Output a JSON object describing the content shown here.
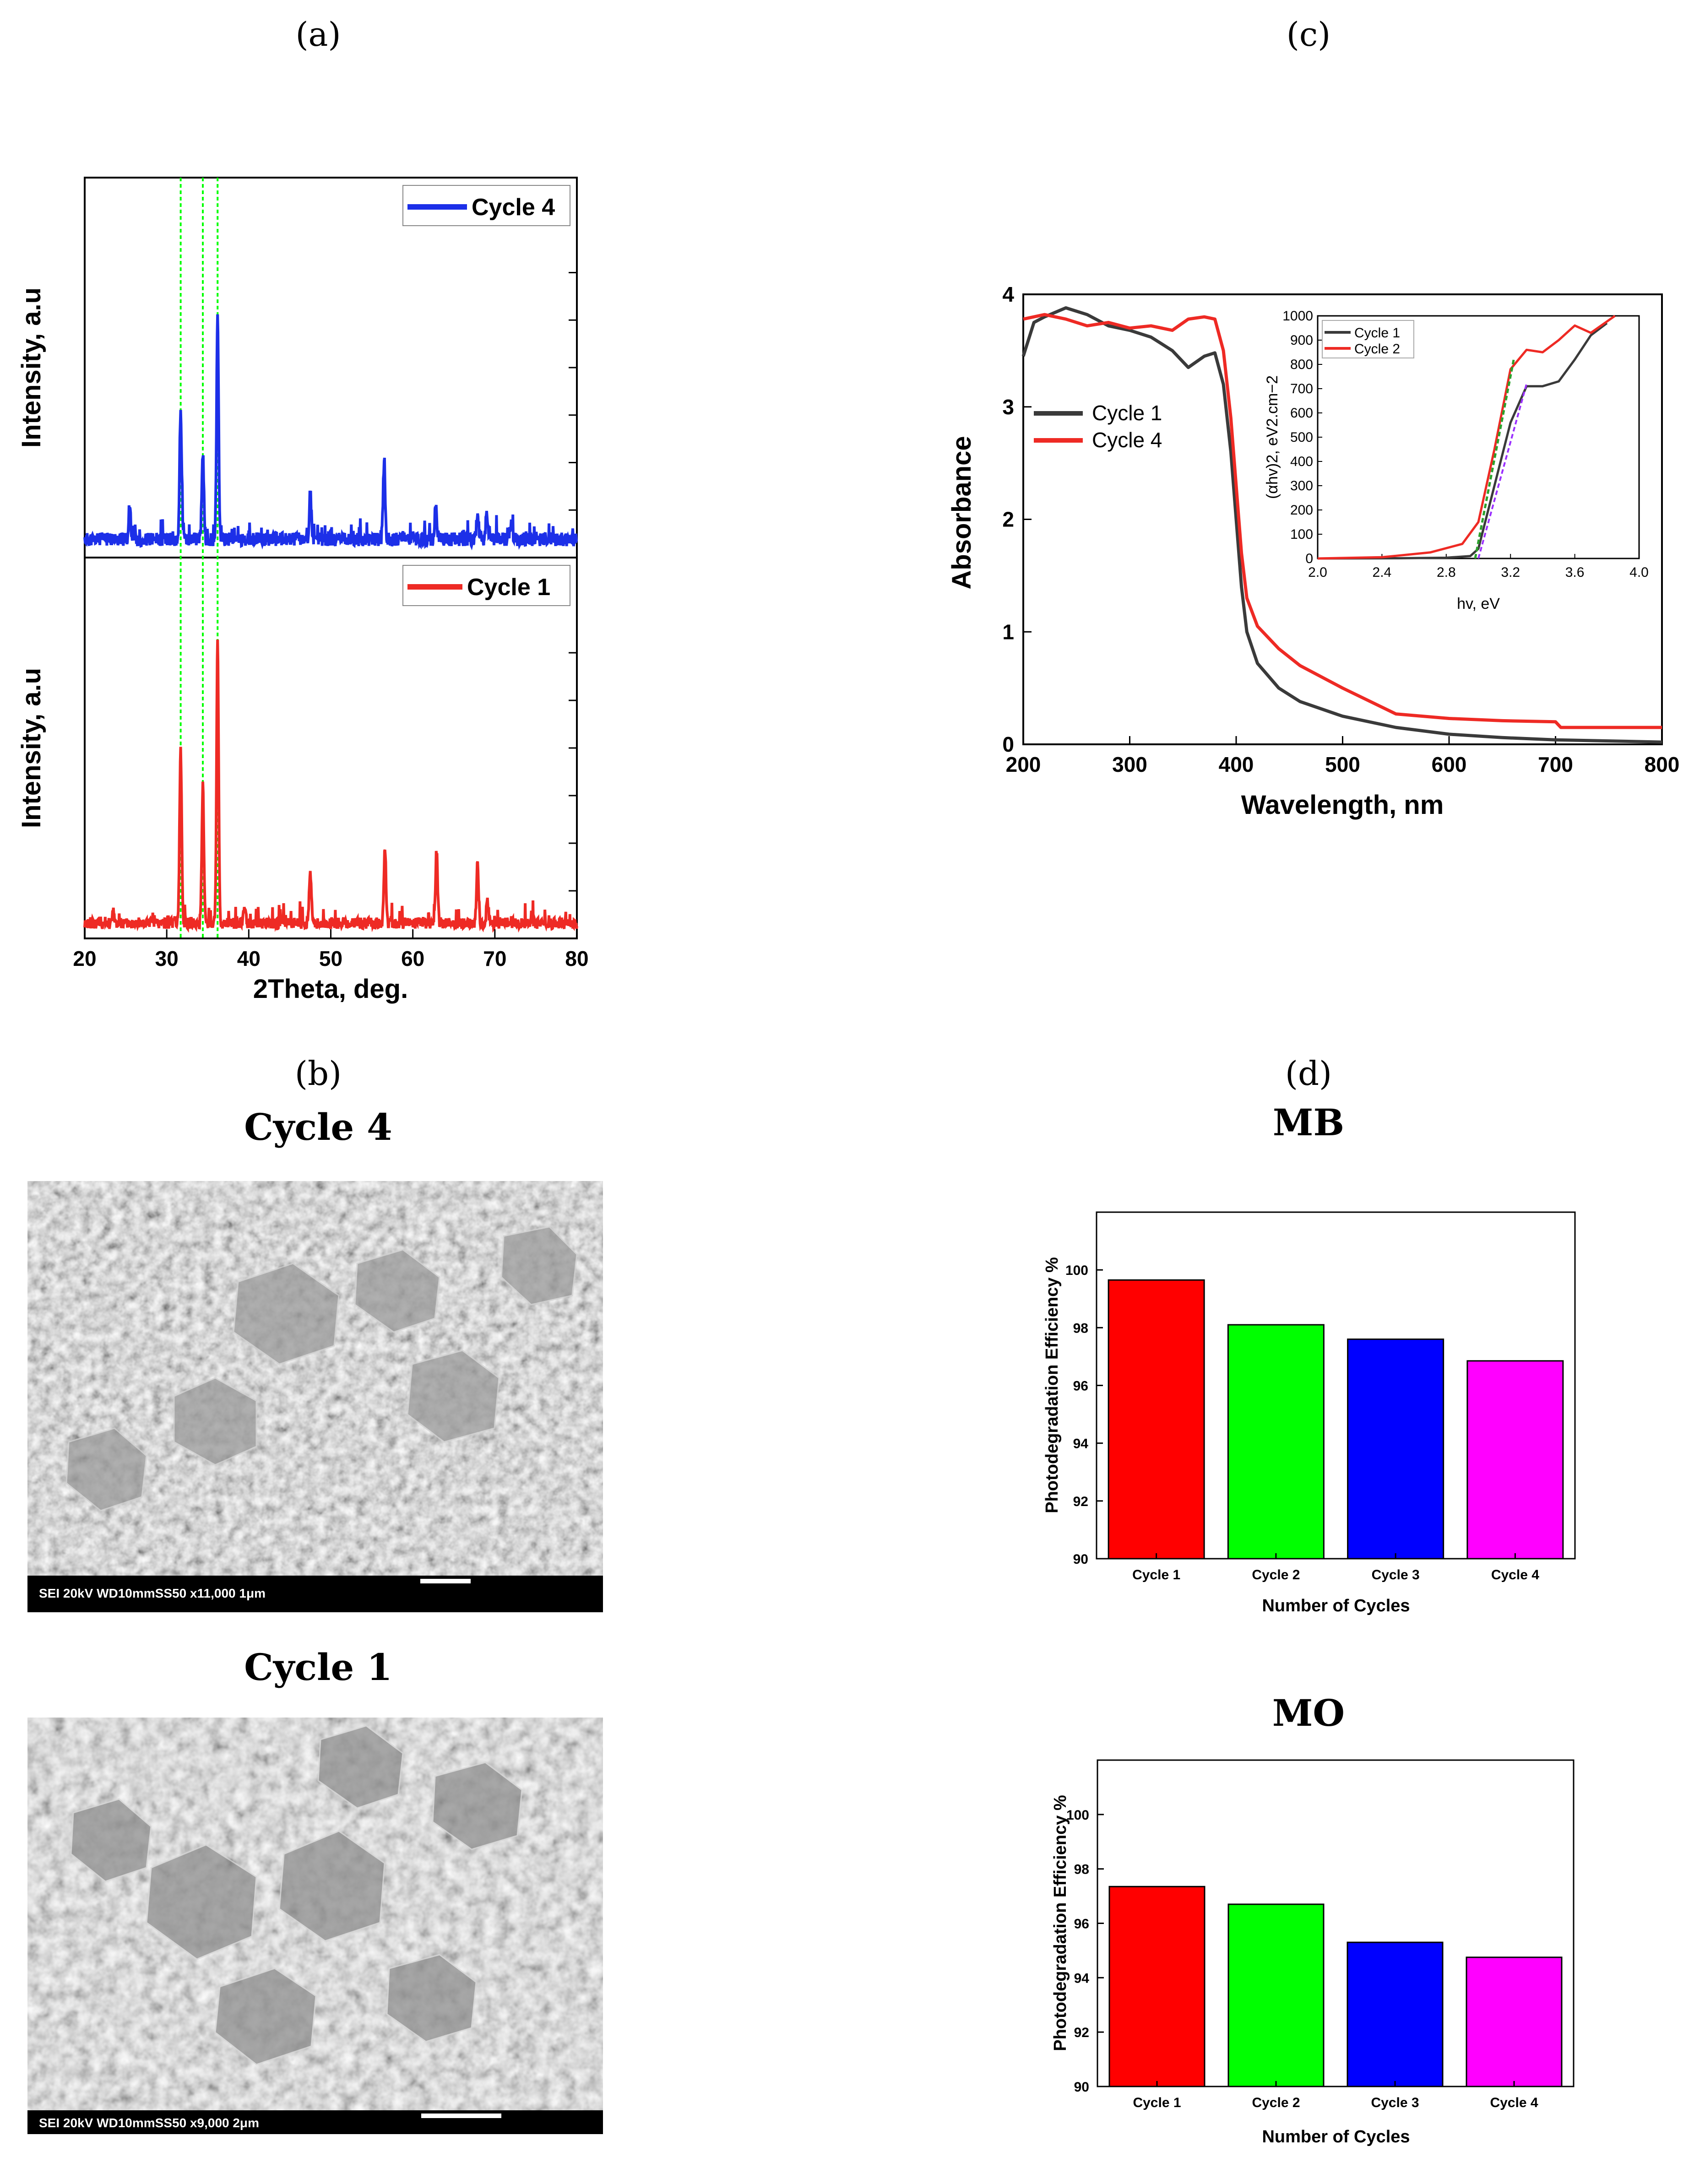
{
  "panels": {
    "a": "(a)",
    "b": "(b)",
    "c": "(c)",
    "d": "(d)"
  },
  "colors": {
    "red": "#ee2a24",
    "blue": "#1c2fe8",
    "dark": "#3a3a3a",
    "green": "#00ff00",
    "bar_blue": "#0000ff",
    "magenta": "#ff00ff"
  },
  "chart_data": [
    {
      "id": "xrd",
      "type": "line",
      "title": "",
      "xlabel": "2Theta, deg.",
      "ylabel": "Intensity, a.u",
      "xlim": [
        20,
        80
      ],
      "xticks": [
        20,
        30,
        40,
        50,
        60,
        70,
        80
      ],
      "reference_lines_x": [
        31.7,
        34.4,
        36.2
      ],
      "series": [
        {
          "name": "Cycle 4",
          "color": "#1c2fe8",
          "baseline": 0.06,
          "peaks": [
            [
              25.5,
              0.08
            ],
            [
              31.7,
              0.34
            ],
            [
              34.4,
              0.22
            ],
            [
              36.2,
              0.58
            ],
            [
              47.5,
              0.12
            ],
            [
              56.5,
              0.2
            ],
            [
              62.8,
              0.09
            ],
            [
              67.9,
              0.07
            ],
            [
              69.0,
              0.06
            ],
            [
              72.0,
              0.05
            ]
          ]
        },
        {
          "name": "Cycle 1",
          "color": "#ee2a24",
          "baseline": 0.05,
          "peaks": [
            [
              23.5,
              0.03
            ],
            [
              31.7,
              0.45
            ],
            [
              34.4,
              0.36
            ],
            [
              36.2,
              0.73
            ],
            [
              39.5,
              0.04
            ],
            [
              47.5,
              0.14
            ],
            [
              56.6,
              0.2
            ],
            [
              62.9,
              0.19
            ],
            [
              67.9,
              0.15
            ],
            [
              69.1,
              0.06
            ]
          ]
        }
      ]
    },
    {
      "id": "uvvis",
      "type": "line",
      "xlabel": "Wavelength, nm",
      "ylabel": "Absorbance",
      "xlim": [
        200,
        800
      ],
      "ylim": [
        0,
        4
      ],
      "xticks": [
        200,
        300,
        400,
        500,
        600,
        700,
        800
      ],
      "yticks": [
        0,
        1,
        2,
        3,
        4
      ],
      "series": [
        {
          "name": "Cycle 1",
          "color": "#3a3a3a",
          "points": [
            [
              200,
              3.45
            ],
            [
              210,
              3.75
            ],
            [
              220,
              3.8
            ],
            [
              240,
              3.88
            ],
            [
              260,
              3.82
            ],
            [
              280,
              3.72
            ],
            [
              300,
              3.68
            ],
            [
              320,
              3.62
            ],
            [
              340,
              3.5
            ],
            [
              355,
              3.35
            ],
            [
              370,
              3.45
            ],
            [
              380,
              3.48
            ],
            [
              388,
              3.2
            ],
            [
              395,
              2.6
            ],
            [
              400,
              2.0
            ],
            [
              405,
              1.4
            ],
            [
              410,
              1.0
            ],
            [
              420,
              0.72
            ],
            [
              440,
              0.5
            ],
            [
              460,
              0.38
            ],
            [
              500,
              0.25
            ],
            [
              550,
              0.15
            ],
            [
              600,
              0.09
            ],
            [
              650,
              0.06
            ],
            [
              700,
              0.04
            ],
            [
              750,
              0.03
            ],
            [
              800,
              0.02
            ]
          ]
        },
        {
          "name": "Cycle 4",
          "color": "#ee2a24",
          "points": [
            [
              200,
              3.78
            ],
            [
              220,
              3.82
            ],
            [
              240,
              3.78
            ],
            [
              260,
              3.72
            ],
            [
              280,
              3.75
            ],
            [
              300,
              3.7
            ],
            [
              320,
              3.72
            ],
            [
              340,
              3.68
            ],
            [
              355,
              3.78
            ],
            [
              370,
              3.8
            ],
            [
              380,
              3.78
            ],
            [
              388,
              3.5
            ],
            [
              395,
              2.9
            ],
            [
              400,
              2.3
            ],
            [
              405,
              1.7
            ],
            [
              410,
              1.3
            ],
            [
              420,
              1.05
            ],
            [
              440,
              0.85
            ],
            [
              460,
              0.7
            ],
            [
              500,
              0.5
            ],
            [
              550,
              0.27
            ],
            [
              600,
              0.23
            ],
            [
              650,
              0.21
            ],
            [
              700,
              0.2
            ],
            [
              705,
              0.15
            ],
            [
              750,
              0.15
            ],
            [
              800,
              0.15
            ]
          ]
        }
      ],
      "inset": {
        "xlabel": "hv, eV",
        "ylabel": "(αhv)2, eV2.cm−2",
        "xlim": [
          2.0,
          4.0
        ],
        "ylim": [
          0,
          1000
        ],
        "xticks": [
          2.0,
          2.4,
          2.8,
          3.2,
          3.6,
          4.0
        ],
        "yticks": [
          0,
          100,
          200,
          300,
          400,
          500,
          600,
          700,
          800,
          900,
          1000
        ],
        "series": [
          {
            "name": "Cycle 1",
            "color": "#3a3a3a",
            "points": [
              [
                2.0,
                0
              ],
              [
                2.5,
                1
              ],
              [
                2.8,
                3
              ],
              [
                2.95,
                10
              ],
              [
                3.0,
                40
              ],
              [
                3.1,
                300
              ],
              [
                3.2,
                560
              ],
              [
                3.3,
                710
              ],
              [
                3.4,
                710
              ],
              [
                3.5,
                730
              ],
              [
                3.6,
                820
              ],
              [
                3.7,
                920
              ],
              [
                3.8,
                970
              ]
            ]
          },
          {
            "name": "Cycle 2",
            "color": "#ee2a24",
            "points": [
              [
                2.0,
                0
              ],
              [
                2.4,
                5
              ],
              [
                2.7,
                25
              ],
              [
                2.9,
                60
              ],
              [
                3.0,
                150
              ],
              [
                3.1,
                450
              ],
              [
                3.2,
                780
              ],
              [
                3.3,
                860
              ],
              [
                3.4,
                850
              ],
              [
                3.5,
                900
              ],
              [
                3.6,
                960
              ],
              [
                3.7,
                930
              ],
              [
                3.85,
                1000
              ]
            ]
          }
        ]
      }
    },
    {
      "id": "mb",
      "type": "bar",
      "title": "MB",
      "xlabel": "Number of Cycles",
      "ylabel": "Photodegradation Efficiency %",
      "ylim": [
        90,
        102
      ],
      "yticks": [
        90,
        92,
        94,
        96,
        98,
        100
      ],
      "categories": [
        "Cycle 1",
        "Cycle 2",
        "Cycle 3",
        "Cycle 4"
      ],
      "values": [
        99.65,
        98.1,
        97.6,
        96.85
      ],
      "bar_colors": [
        "#ff0000",
        "#00ff00",
        "#0000ff",
        "#ff00ff"
      ]
    },
    {
      "id": "mo",
      "type": "bar",
      "title": "MO",
      "xlabel": "Number of Cycles",
      "ylabel": "Photodegradation Efficiency %",
      "ylim": [
        90,
        102
      ],
      "yticks": [
        90,
        92,
        94,
        96,
        98,
        100
      ],
      "categories": [
        "Cycle 1",
        "Cycle 2",
        "Cycle 3",
        "Cycle 4"
      ],
      "values": [
        97.35,
        96.7,
        95.3,
        94.75
      ],
      "bar_colors": [
        "#ff0000",
        "#00ff00",
        "#0000ff",
        "#ff00ff"
      ]
    }
  ],
  "sem": {
    "top": {
      "title": "Cycle 4",
      "info": "SEI   20kV   WD10mmSS50        x11,000    1μm"
    },
    "bottom": {
      "title": "Cycle 1",
      "info": "SEI   20kV   WD10mmSS50         x9,000     2μm"
    }
  }
}
